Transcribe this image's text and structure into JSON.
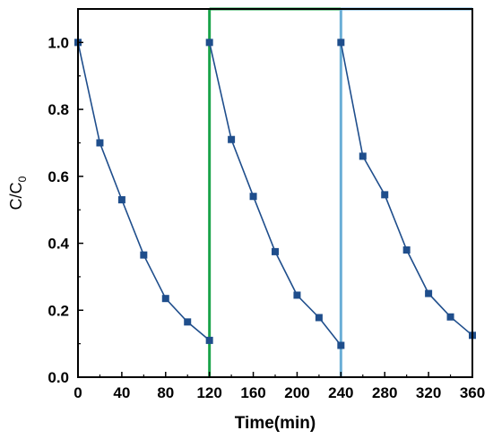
{
  "chart_data": {
    "type": "line",
    "xlabel": "Time(min)",
    "ylabel": {
      "main": "C/C",
      "sub": "0"
    },
    "xlim": [
      0,
      360
    ],
    "ylim": [
      0,
      1.1
    ],
    "xticks": [
      0,
      40,
      80,
      120,
      160,
      200,
      240,
      280,
      320,
      360
    ],
    "yticks": [
      0.0,
      0.2,
      0.4,
      0.6,
      0.8,
      1.0
    ],
    "xtick_labels": [
      "0",
      "40",
      "80",
      "120",
      "160",
      "200",
      "240",
      "280",
      "320",
      "360"
    ],
    "ytick_labels": [
      "0.0",
      "0.2",
      "0.4",
      "0.6",
      "0.8",
      "1.0"
    ],
    "grid": false,
    "legend": "none",
    "series_color": "#1f4e8c",
    "dividers": [
      {
        "x": 120,
        "color": "#1aa34a"
      },
      {
        "x": 240,
        "color": "#6aaed6"
      }
    ],
    "series": [
      {
        "x": [
          0,
          20,
          40,
          60,
          80,
          100,
          120
        ],
        "y": [
          1.0,
          0.7,
          0.53,
          0.365,
          0.235,
          0.165,
          0.11
        ]
      },
      {
        "x": [
          120,
          140,
          160,
          180,
          200,
          220,
          240
        ],
        "y": [
          1.0,
          0.71,
          0.54,
          0.375,
          0.245,
          0.178,
          0.095
        ]
      },
      {
        "x": [
          240,
          260,
          280,
          300,
          320,
          340,
          360
        ],
        "y": [
          1.0,
          0.66,
          0.545,
          0.38,
          0.25,
          0.18,
          0.125
        ]
      }
    ]
  }
}
